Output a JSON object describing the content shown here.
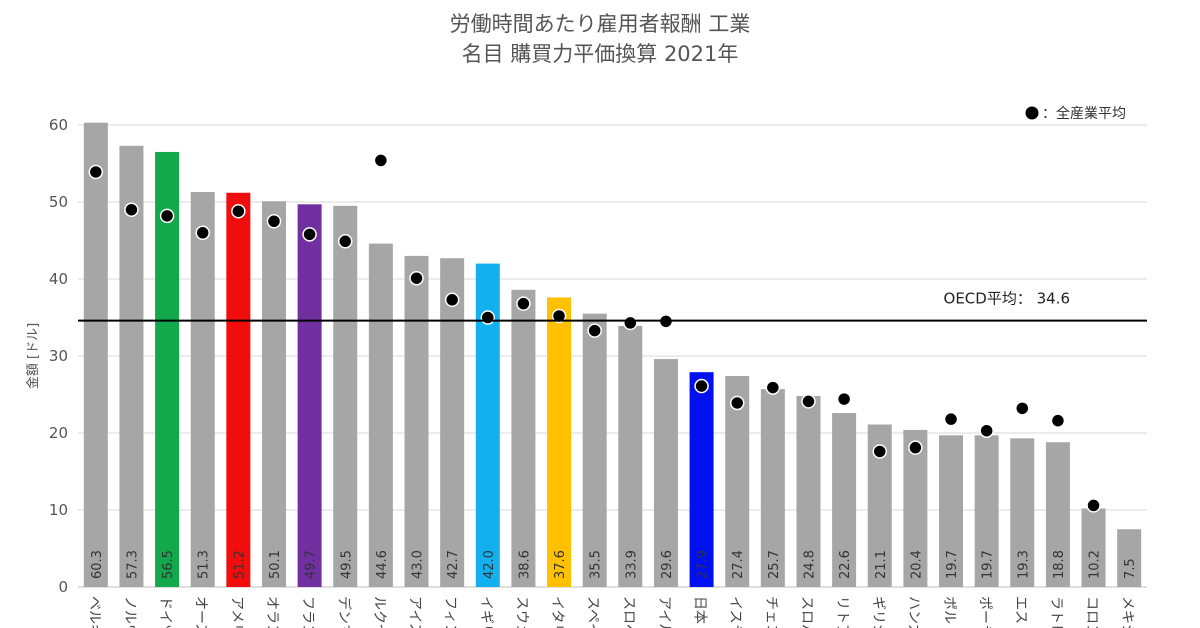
{
  "chart_data": {
    "type": "bar",
    "title": "労働時間あたり雇用者報酬 工業",
    "subtitle": "名目 購買力平価換算 2021年",
    "ylabel": "金額 [ドル]",
    "ylim": [
      0,
      60
    ],
    "yticks": [
      0,
      10,
      20,
      30,
      40,
      50,
      60
    ],
    "grid": true,
    "legend": "top-right",
    "legend_label": "：全産業平均",
    "reference_line": {
      "label": "OECD平均： 34.6",
      "value": 34.6
    },
    "categories": [
      "ベルギ",
      "ノルウ",
      "ドイツ",
      "オース",
      "アメリ",
      "オラン",
      "フラン",
      "デンマ",
      "ルクセ",
      "アイス",
      "フィン",
      "イギリ",
      "スウェ",
      "イタリ",
      "スペイ",
      "スロベ",
      "アイル",
      "日本",
      "イスラ",
      "チェコ",
      "スロバ",
      "リトア",
      "ギリシ",
      "ハンガ",
      "ポルト",
      "ポーラ",
      "エスト",
      "ラトビ",
      "コロン",
      "メキシ"
    ],
    "values": [
      60.3,
      57.3,
      56.5,
      51.3,
      51.2,
      50.1,
      49.7,
      49.5,
      44.6,
      43.0,
      42.7,
      42.0,
      38.6,
      37.6,
      35.5,
      33.9,
      29.6,
      27.9,
      27.4,
      25.7,
      24.8,
      22.6,
      21.1,
      20.4,
      19.7,
      19.7,
      19.3,
      18.8,
      10.2,
      7.5
    ],
    "value_labels": [
      "60.3",
      "57.3",
      "56.5",
      "51.3",
      "51.2",
      "50.1",
      "49.7",
      "49.5",
      "44.6",
      "43.0",
      "42.7",
      "42.0",
      "38.6",
      "37.6",
      "35.5",
      "33.9",
      "29.6",
      "27.9",
      "27.4",
      "25.7",
      "24.8",
      "22.6",
      "21.1",
      "20.4",
      "19.7",
      "19.7",
      "19.3",
      "18.8",
      "10.2",
      "7.5"
    ],
    "bar_colors": [
      "#a6a6a6",
      "#a6a6a6",
      "#14a84c",
      "#a6a6a6",
      "#f20d0d",
      "#a6a6a6",
      "#7030a0",
      "#a6a6a6",
      "#a6a6a6",
      "#a6a6a6",
      "#a6a6a6",
      "#12b0ef",
      "#a6a6a6",
      "#ffc000",
      "#a6a6a6",
      "#a6a6a6",
      "#a6a6a6",
      "#0010f0",
      "#a6a6a6",
      "#a6a6a6",
      "#a6a6a6",
      "#a6a6a6",
      "#a6a6a6",
      "#a6a6a6",
      "#a6a6a6",
      "#a6a6a6",
      "#a6a6a6",
      "#a6a6a6",
      "#a6a6a6",
      "#a6a6a6"
    ],
    "white_label_bars": [
      2,
      4,
      6,
      11,
      17
    ],
    "all_industry_average": [
      53.9,
      49.0,
      48.2,
      46.0,
      48.8,
      47.5,
      45.8,
      44.9,
      55.4,
      40.1,
      37.3,
      35.0,
      36.8,
      35.2,
      33.3,
      34.3,
      34.5,
      26.1,
      23.9,
      25.9,
      24.1,
      24.4,
      17.6,
      18.1,
      21.8,
      20.3,
      23.2,
      21.6,
      10.6,
      null
    ]
  }
}
